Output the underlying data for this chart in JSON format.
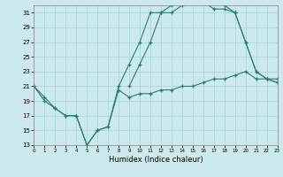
{
  "xlabel": "Humidex (Indice chaleur)",
  "bg_color": "#cceaed",
  "grid_color": "#aad4d8",
  "line_color": "#2d7d6e",
  "xlim": [
    0,
    23
  ],
  "ylim": [
    13,
    32
  ],
  "yticks": [
    13,
    15,
    17,
    19,
    21,
    23,
    25,
    27,
    29,
    31
  ],
  "xticks": [
    0,
    1,
    2,
    3,
    4,
    5,
    6,
    7,
    8,
    9,
    10,
    11,
    12,
    13,
    14,
    15,
    16,
    17,
    18,
    19,
    20,
    21,
    22,
    23
  ],
  "line1_x": [
    0,
    1,
    2,
    3,
    4,
    5,
    6,
    7,
    8,
    9,
    10,
    11,
    12,
    13,
    14,
    15,
    16,
    17,
    18,
    19,
    20,
    21,
    22,
    23
  ],
  "line1_y": [
    21,
    19,
    18,
    17,
    17,
    13,
    15,
    15.5,
    20.5,
    19.5,
    20,
    20,
    20.5,
    20.5,
    21,
    21,
    21.5,
    22,
    22,
    22.5,
    23,
    22,
    22,
    22
  ],
  "line2_x": [
    0,
    1,
    2,
    3,
    4,
    5,
    6,
    7,
    8,
    9,
    10,
    11,
    12,
    13,
    14,
    15,
    16,
    17,
    18,
    19,
    20,
    21,
    22,
    23
  ],
  "line2_y": [
    21,
    19.5,
    18,
    17,
    17,
    13,
    15,
    15.5,
    21,
    24,
    27,
    31,
    31,
    32,
    33,
    33,
    32.5,
    32.5,
    32,
    31,
    27,
    23,
    22,
    21.5
  ],
  "line3_x": [
    9,
    10,
    11,
    12,
    13,
    14,
    15,
    16,
    17,
    18,
    19,
    20,
    21,
    22,
    23
  ],
  "line3_y": [
    21,
    24,
    27,
    31,
    31,
    32,
    33,
    32.5,
    31.5,
    31.5,
    31,
    27,
    23,
    22,
    21.5
  ]
}
